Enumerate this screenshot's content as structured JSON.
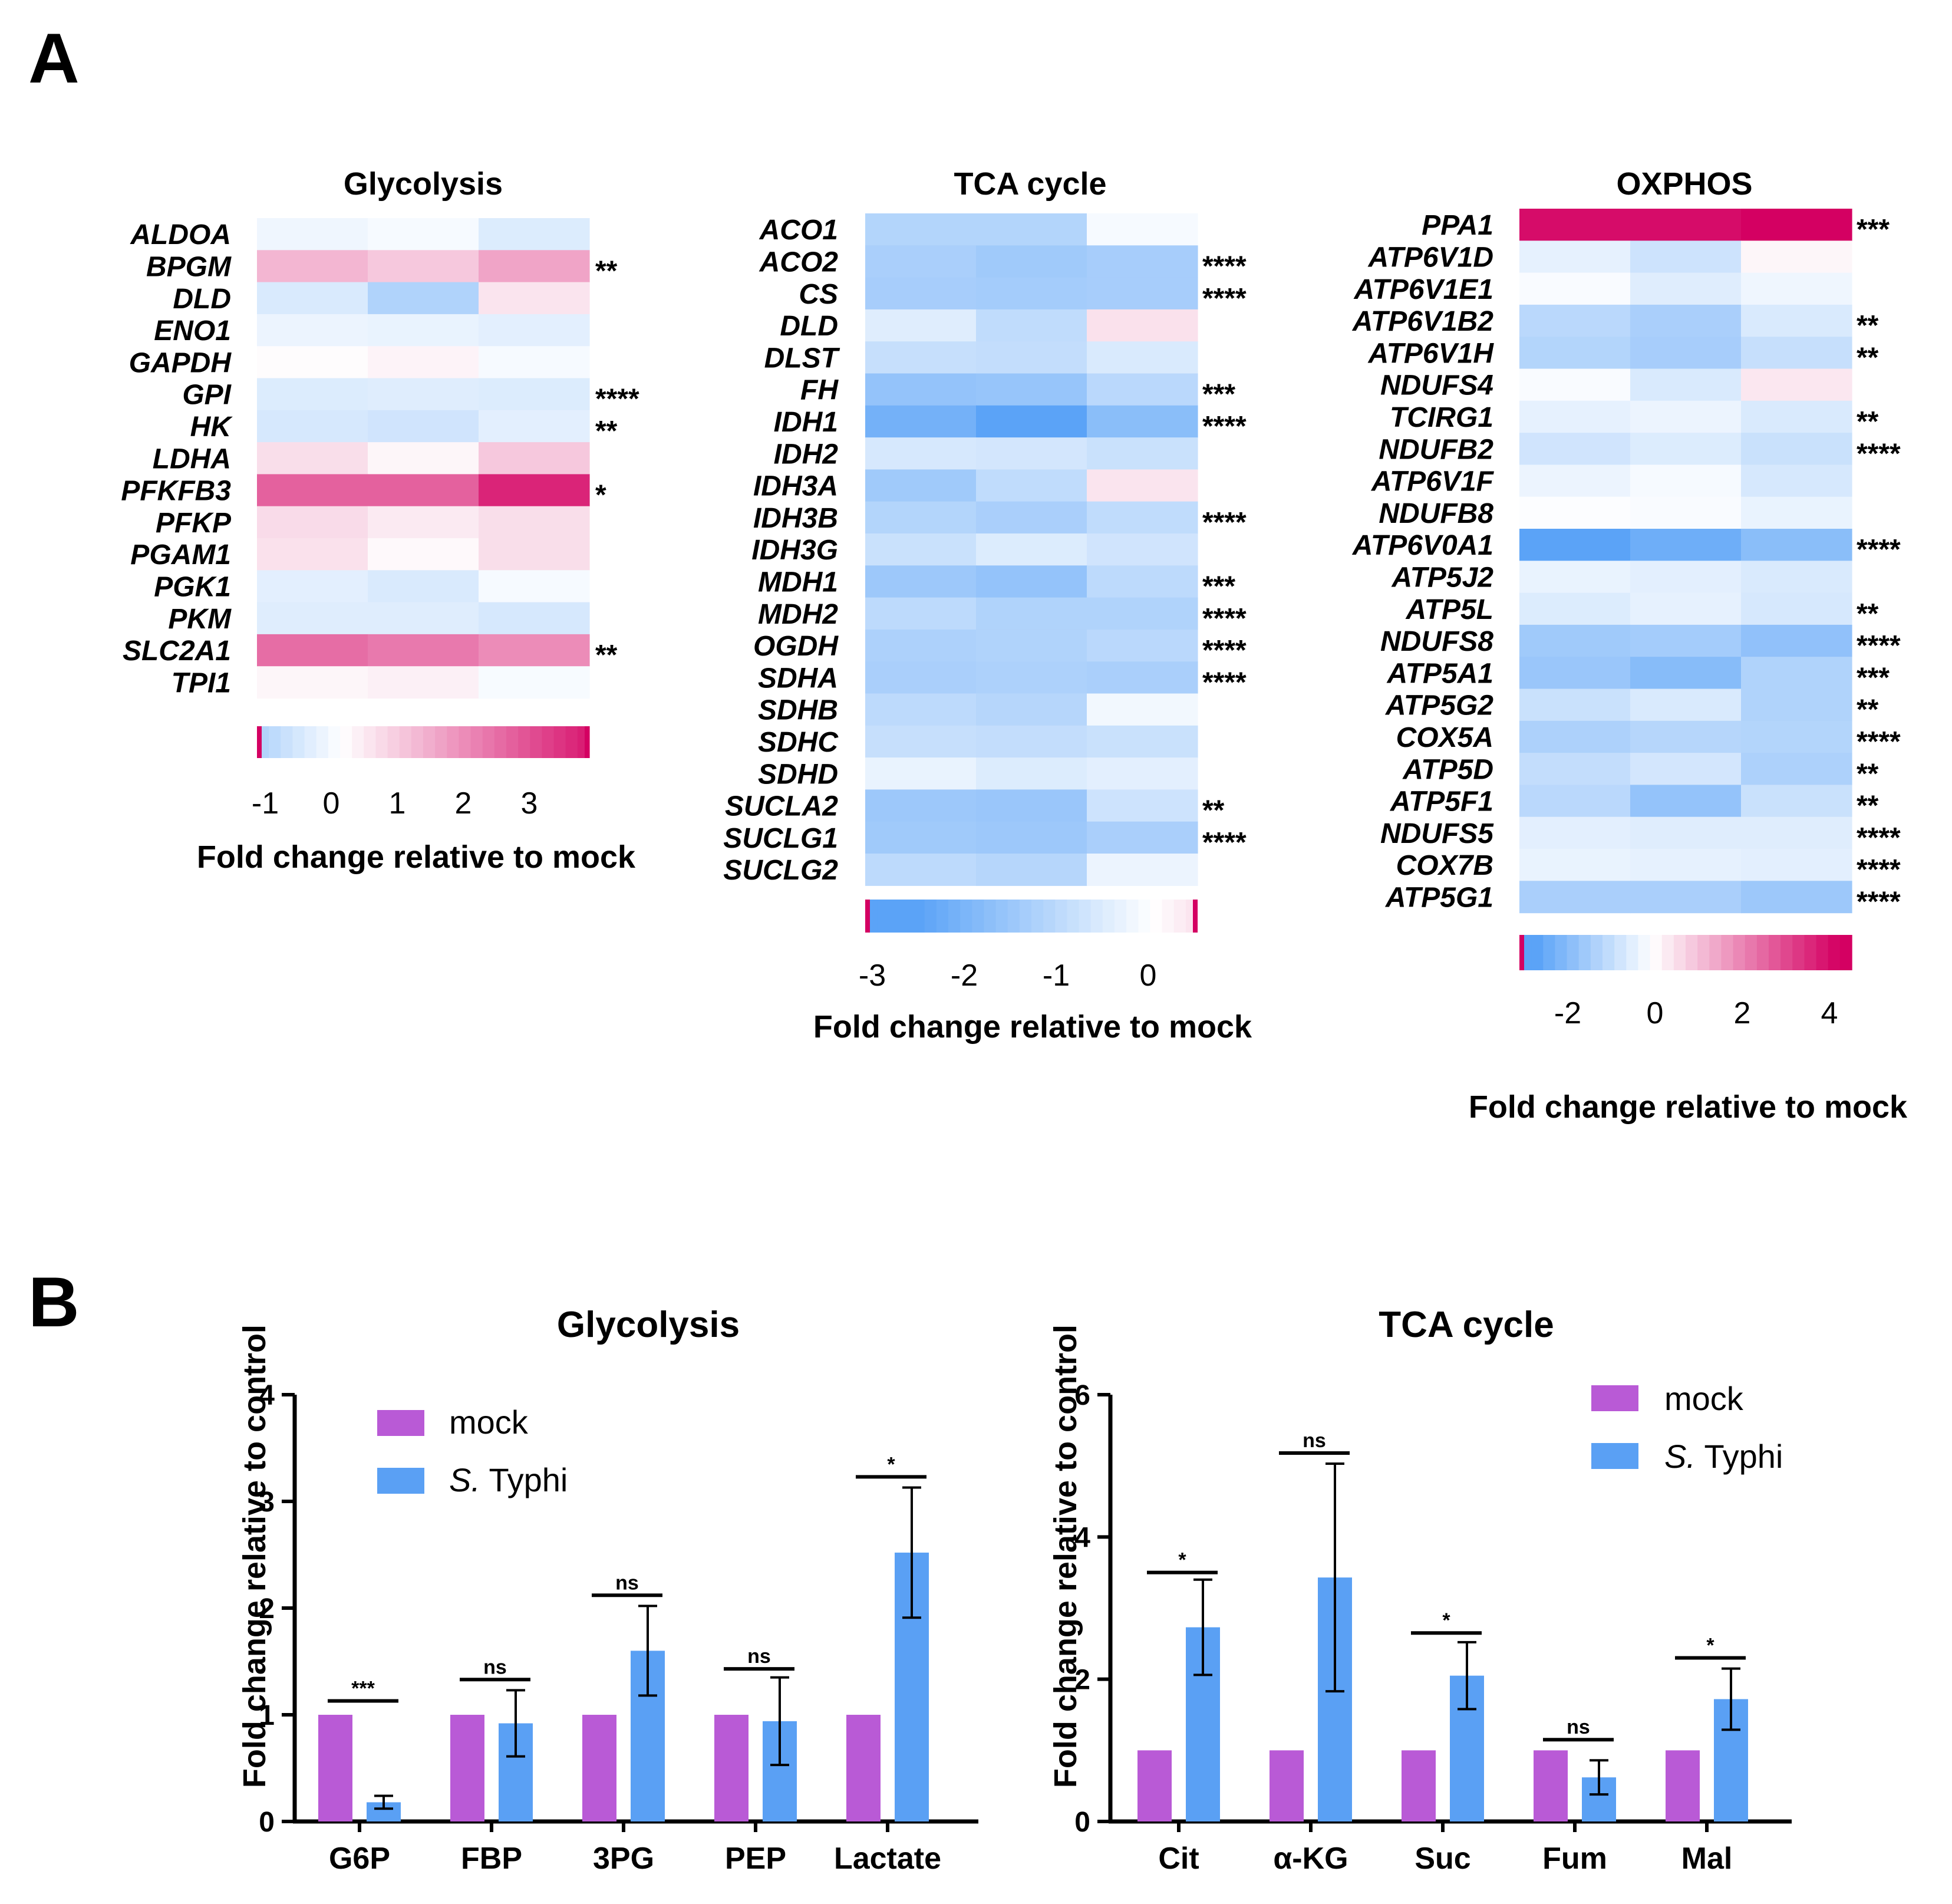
{
  "panels": {
    "A": "A",
    "B": "B"
  },
  "colors": {
    "mock": "#b95ad6",
    "typhi": "#5aa0f4",
    "heatmap_low": "#5ba3f7",
    "heatmap_mid": "#ffffff",
    "heatmap_high": "#d40062"
  },
  "heatmaps": [
    {
      "id": "glycolysis",
      "title": "Glycolysis",
      "colorbar_ticks": [
        "-1",
        "0",
        "1",
        "2",
        "3"
      ],
      "colorbar_label": "Fold change relative to mock",
      "value_range": [
        -1.3,
        3.8
      ],
      "rows": [
        {
          "gene": "ALDOA",
          "values": [
            -0.25,
            -0.15,
            -0.55
          ],
          "sig": ""
        },
        {
          "gene": "BPGM",
          "values": [
            1.2,
            0.9,
            1.5
          ],
          "sig": "**"
        },
        {
          "gene": "DLD",
          "values": [
            -0.6,
            -1.25,
            0.45
          ],
          "sig": ""
        },
        {
          "gene": "ENO1",
          "values": [
            -0.3,
            -0.35,
            -0.45
          ],
          "sig": ""
        },
        {
          "gene": "GAPDH",
          "values": [
            0.05,
            0.2,
            -0.15
          ],
          "sig": ""
        },
        {
          "gene": "GPI",
          "values": [
            -0.55,
            -0.5,
            -0.55
          ],
          "sig": "****"
        },
        {
          "gene": "HK",
          "values": [
            -0.65,
            -0.75,
            -0.45
          ],
          "sig": "**"
        },
        {
          "gene": "LDHA",
          "values": [
            0.55,
            0.15,
            0.9
          ],
          "sig": ""
        },
        {
          "gene": "PFKFB3",
          "values": [
            2.6,
            2.6,
            3.6
          ],
          "sig": "*"
        },
        {
          "gene": "PFKP",
          "values": [
            0.6,
            0.35,
            0.55
          ],
          "sig": ""
        },
        {
          "gene": "PGAM1",
          "values": [
            0.5,
            0.1,
            0.55
          ],
          "sig": ""
        },
        {
          "gene": "PGK1",
          "values": [
            -0.45,
            -0.6,
            -0.15
          ],
          "sig": ""
        },
        {
          "gene": "PKM",
          "values": [
            -0.5,
            -0.5,
            -0.65
          ],
          "sig": ""
        },
        {
          "gene": "SLC2A1",
          "values": [
            2.4,
            2.2,
            1.9
          ],
          "sig": "**"
        },
        {
          "gene": "TPI1",
          "values": [
            0.15,
            0.25,
            -0.12
          ],
          "sig": ""
        }
      ]
    },
    {
      "id": "tca",
      "title": "TCA cycle",
      "colorbar_ticks": [
        "-3",
        "-2",
        "-1",
        "0"
      ],
      "colorbar_label": "Fold change relative to mock",
      "value_range": [
        -3.2,
        0.5
      ],
      "rows": [
        {
          "gene": "ACO1",
          "values": [
            -1.2,
            -1.2,
            -0.15
          ],
          "sig": ""
        },
        {
          "gene": "ACO2",
          "values": [
            -1.35,
            -1.5,
            -1.4
          ],
          "sig": "****"
        },
        {
          "gene": "CS",
          "values": [
            -1.4,
            -1.45,
            -1.4
          ],
          "sig": "****"
        },
        {
          "gene": "DLD",
          "values": [
            -0.5,
            -1.0,
            0.5
          ],
          "sig": ""
        },
        {
          "gene": "DLST",
          "values": [
            -0.9,
            -0.95,
            -0.6
          ],
          "sig": ""
        },
        {
          "gene": "FH",
          "values": [
            -1.7,
            -1.65,
            -1.1
          ],
          "sig": "***"
        },
        {
          "gene": "IDH1",
          "values": [
            -2.2,
            -2.6,
            -1.85
          ],
          "sig": "****"
        },
        {
          "gene": "IDH2",
          "values": [
            -0.65,
            -0.7,
            -0.85
          ],
          "sig": ""
        },
        {
          "gene": "IDH3A",
          "values": [
            -1.5,
            -1.0,
            0.45
          ],
          "sig": ""
        },
        {
          "gene": "IDH3B",
          "values": [
            -1.2,
            -1.35,
            -1.0
          ],
          "sig": "****"
        },
        {
          "gene": "IDH3G",
          "values": [
            -0.85,
            -0.55,
            -0.75
          ],
          "sig": ""
        },
        {
          "gene": "MDH1",
          "values": [
            -1.55,
            -1.7,
            -1.05
          ],
          "sig": "***"
        },
        {
          "gene": "MDH2",
          "values": [
            -1.05,
            -1.25,
            -1.25
          ],
          "sig": "****"
        },
        {
          "gene": "OGDH",
          "values": [
            -1.3,
            -1.25,
            -1.1
          ],
          "sig": "****"
        },
        {
          "gene": "SDHA",
          "values": [
            -1.35,
            -1.3,
            -1.35
          ],
          "sig": "****"
        },
        {
          "gene": "SDHB",
          "values": [
            -1.05,
            -1.15,
            -0.2
          ],
          "sig": ""
        },
        {
          "gene": "SDHC",
          "values": [
            -0.9,
            -0.95,
            -0.85
          ],
          "sig": ""
        },
        {
          "gene": "SDHD",
          "values": [
            -0.35,
            -0.55,
            -0.45
          ],
          "sig": ""
        },
        {
          "gene": "SUCLA2",
          "values": [
            -1.55,
            -1.6,
            -0.8
          ],
          "sig": "**"
        },
        {
          "gene": "SUCLG1",
          "values": [
            -1.5,
            -1.55,
            -1.35
          ],
          "sig": "****"
        },
        {
          "gene": "SUCLG2",
          "values": [
            -1.05,
            -1.15,
            -0.3
          ],
          "sig": ""
        }
      ]
    },
    {
      "id": "oxphos",
      "title": "OXPHOS",
      "colorbar_ticks": [
        "-2",
        "0",
        "2",
        "4"
      ],
      "colorbar_label": "Fold change relative to mock",
      "value_range": [
        -3.0,
        4.5
      ],
      "rows": [
        {
          "gene": "PPA1",
          "values": [
            4.0,
            4.0,
            4.3
          ],
          "sig": "***"
        },
        {
          "gene": "ATP6V1D",
          "values": [
            -0.4,
            -0.8,
            0.15
          ],
          "sig": ""
        },
        {
          "gene": "ATP6V1E1",
          "values": [
            -0.1,
            -0.5,
            -0.25
          ],
          "sig": ""
        },
        {
          "gene": "ATP6V1B2",
          "values": [
            -1.1,
            -1.35,
            -0.6
          ],
          "sig": "**"
        },
        {
          "gene": "ATP6V1H",
          "values": [
            -1.2,
            -1.4,
            -0.9
          ],
          "sig": "**"
        },
        {
          "gene": "NDUFS4",
          "values": [
            -0.1,
            -0.6,
            0.4
          ],
          "sig": ""
        },
        {
          "gene": "TCIRG1",
          "values": [
            -0.4,
            -0.3,
            -0.6
          ],
          "sig": "**"
        },
        {
          "gene": "NDUFB2",
          "values": [
            -0.75,
            -0.55,
            -0.85
          ],
          "sig": "****"
        },
        {
          "gene": "ATP6V1F",
          "values": [
            -0.3,
            -0.15,
            -0.65
          ],
          "sig": ""
        },
        {
          "gene": "NDUFB8",
          "values": [
            -0.05,
            -0.1,
            -0.35
          ],
          "sig": ""
        },
        {
          "gene": "ATP6V0A1",
          "values": [
            -2.6,
            -2.3,
            -1.85
          ],
          "sig": "****"
        },
        {
          "gene": "ATP5J2",
          "values": [
            -0.35,
            -0.45,
            -0.6
          ],
          "sig": ""
        },
        {
          "gene": "ATP5L",
          "values": [
            -0.55,
            -0.4,
            -0.65
          ],
          "sig": "**"
        },
        {
          "gene": "NDUFS8",
          "values": [
            -1.5,
            -1.45,
            -1.75
          ],
          "sig": "****"
        },
        {
          "gene": "ATP5A1",
          "values": [
            -1.6,
            -1.9,
            -1.25
          ],
          "sig": "***"
        },
        {
          "gene": "ATP5G2",
          "values": [
            -0.85,
            -0.6,
            -1.25
          ],
          "sig": "**"
        },
        {
          "gene": "COX5A",
          "values": [
            -1.3,
            -1.15,
            -1.2
          ],
          "sig": "****"
        },
        {
          "gene": "ATP5D",
          "values": [
            -0.95,
            -0.7,
            -1.3
          ],
          "sig": "**"
        },
        {
          "gene": "ATP5F1",
          "values": [
            -1.1,
            -1.7,
            -0.85
          ],
          "sig": "**"
        },
        {
          "gene": "NDUFS5",
          "values": [
            -0.45,
            -0.5,
            -0.5
          ],
          "sig": "****"
        },
        {
          "gene": "COX7B",
          "values": [
            -0.35,
            -0.4,
            -0.45
          ],
          "sig": "****"
        },
        {
          "gene": "ATP5G1",
          "values": [
            -1.35,
            -1.35,
            -1.55
          ],
          "sig": "****"
        }
      ]
    }
  ],
  "chart_data": [
    {
      "type": "bar",
      "title": "Glycolysis",
      "ylabel": "Fold change relative to control",
      "ylim": [
        0,
        4
      ],
      "yticks": [
        "0",
        "1",
        "2",
        "3",
        "4"
      ],
      "categories": [
        "G6P",
        "FBP",
        "3PG",
        "PEP",
        "Lactate"
      ],
      "series": [
        {
          "name": "mock",
          "values": [
            1,
            1,
            1,
            1,
            1
          ]
        },
        {
          "name_prefix": "S.",
          "name_suffix": " Typhi",
          "values": [
            0.18,
            0.92,
            1.6,
            0.94,
            2.52
          ],
          "errors": [
            0.06,
            0.31,
            0.42,
            0.41,
            0.61
          ]
        }
      ],
      "significance": [
        "***",
        "ns",
        "ns",
        "ns",
        "*"
      ],
      "sig_heights": [
        1.13,
        1.33,
        2.12,
        1.43,
        3.23
      ]
    },
    {
      "type": "bar",
      "title": "TCA cycle",
      "ylabel": "Fold change relative to control",
      "ylim": [
        0,
        6
      ],
      "yticks": [
        "0",
        "2",
        "4",
        "6"
      ],
      "categories": [
        "Cit",
        "α-KG",
        "Suc",
        "Fum",
        "Mal"
      ],
      "series": [
        {
          "name": "mock",
          "values": [
            1,
            1,
            1,
            1,
            1
          ]
        },
        {
          "name_prefix": "S.",
          "name_suffix": " Typhi",
          "values": [
            2.73,
            3.43,
            2.05,
            0.62,
            1.72
          ],
          "errors": [
            0.67,
            1.6,
            0.47,
            0.24,
            0.43
          ]
        }
      ],
      "significance": [
        "*",
        "ns",
        "*",
        "ns",
        "*"
      ],
      "sig_heights": [
        3.5,
        5.18,
        2.65,
        1.15,
        2.3
      ]
    }
  ]
}
